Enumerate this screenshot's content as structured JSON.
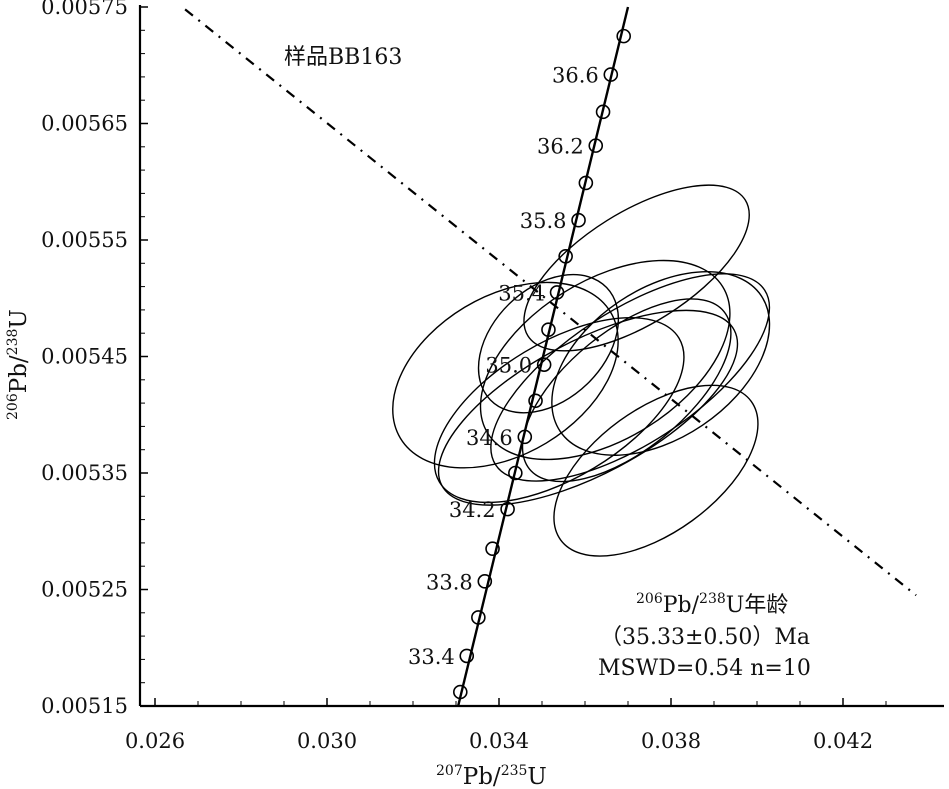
{
  "chart_data": {
    "type": "scatter",
    "subtype": "concordia",
    "sample_label": "样品BB163",
    "xlabel": {
      "sup1": "207",
      "main1": "Pb/",
      "sup2": "235",
      "main2": "U"
    },
    "ylabel": {
      "sup1": "206",
      "main1": "Pb/",
      "sup2": "238",
      "main2": "U"
    },
    "xlim": [
      0.026,
      0.0438
    ],
    "ylim": [
      0.00515,
      0.00575
    ],
    "x_ticks": [
      "0.026",
      "0.030",
      "0.034",
      "0.038",
      "0.042"
    ],
    "x_tick_values": [
      0.026,
      0.03,
      0.034,
      0.038,
      0.042
    ],
    "y_ticks": [
      "0.00515",
      "0.00525",
      "0.00535",
      "0.00545",
      "0.00555",
      "0.00565",
      "0.00575"
    ],
    "y_tick_values": [
      0.00515,
      0.00525,
      0.00535,
      0.00545,
      0.00555,
      0.00565,
      0.00575
    ],
    "concordia_line": {
      "start": [
        0.03305,
        0.00515
      ],
      "end": [
        0.037,
        0.00575
      ]
    },
    "concordia_ages": [
      {
        "age": 33.2,
        "x": 0.0331,
        "y": 0.005162,
        "label": ""
      },
      {
        "age": 33.4,
        "x": 0.03325,
        "y": 0.005193,
        "label": "33.4"
      },
      {
        "age": 33.6,
        "x": 0.03352,
        "y": 0.005226,
        "label": ""
      },
      {
        "age": 33.8,
        "x": 0.03367,
        "y": 0.005257,
        "label": "33.8"
      },
      {
        "age": 34.0,
        "x": 0.03385,
        "y": 0.005285,
        "label": ""
      },
      {
        "age": 34.2,
        "x": 0.0342,
        "y": 0.005319,
        "label": "34.2"
      },
      {
        "age": 34.4,
        "x": 0.03438,
        "y": 0.00535,
        "label": ""
      },
      {
        "age": 34.6,
        "x": 0.0346,
        "y": 0.005381,
        "label": "34.6"
      },
      {
        "age": 34.8,
        "x": 0.03485,
        "y": 0.005412,
        "label": ""
      },
      {
        "age": 35.0,
        "x": 0.03505,
        "y": 0.005443,
        "label": "35.0"
      },
      {
        "age": 35.2,
        "x": 0.03515,
        "y": 0.005473,
        "label": ""
      },
      {
        "age": 35.4,
        "x": 0.03535,
        "y": 0.005505,
        "label": "35.4"
      },
      {
        "age": 35.6,
        "x": 0.03555,
        "y": 0.005536,
        "label": ""
      },
      {
        "age": 35.8,
        "x": 0.03585,
        "y": 0.005567,
        "label": "35.8"
      },
      {
        "age": 36.0,
        "x": 0.03602,
        "y": 0.005599,
        "label": ""
      },
      {
        "age": 36.2,
        "x": 0.03625,
        "y": 0.005631,
        "label": "36.2"
      },
      {
        "age": 36.4,
        "x": 0.03642,
        "y": 0.00566,
        "label": ""
      },
      {
        "age": 36.6,
        "x": 0.0366,
        "y": 0.005692,
        "label": "36.6"
      },
      {
        "age": 36.8,
        "x": 0.0369,
        "y": 0.005725,
        "label": ""
      }
    ],
    "error_ellipses": [
      {
        "cx": 0.0372,
        "cy": 0.005526,
        "rx": 0.00298,
        "ry": 4.8e-05,
        "angle_deg": -32
      },
      {
        "cx": 0.03515,
        "cy": 0.005461,
        "rx": 0.00188,
        "ry": 4.8e-05,
        "angle_deg": -44
      },
      {
        "cx": 0.03415,
        "cy": 0.005434,
        "rx": 0.00285,
        "ry": 6.8e-05,
        "angle_deg": -31
      },
      {
        "cx": 0.0354,
        "cy": 0.005404,
        "rx": 0.00325,
        "ry": 5.8e-05,
        "angle_deg": -31
      },
      {
        "cx": 0.03607,
        "cy": 0.005406,
        "rx": 0.00385,
        "ry": 5.7e-05,
        "angle_deg": -28
      },
      {
        "cx": 0.03647,
        "cy": 0.005447,
        "rx": 0.00322,
        "ry": 6.8e-05,
        "angle_deg": -32
      },
      {
        "cx": 0.03697,
        "cy": 0.005421,
        "rx": 0.00291,
        "ry": 5.1e-05,
        "angle_deg": -39
      },
      {
        "cx": 0.03705,
        "cy": 0.005432,
        "rx": 0.00373,
        "ry": 5.7e-05,
        "angle_deg": -33
      },
      {
        "cx": 0.03776,
        "cy": 0.005444,
        "rx": 0.00282,
        "ry": 6.4e-05,
        "angle_deg": -34
      },
      {
        "cx": 0.03765,
        "cy": 0.005352,
        "rx": 0.00274,
        "ry": 5.3e-05,
        "angle_deg": -36
      }
    ],
    "regression_line": {
      "start": [
        0.0267,
        0.005748
      ],
      "end": [
        0.0437,
        0.005245
      ]
    },
    "annotation": {
      "line1": {
        "sup1": "206",
        "main1": "Pb/",
        "sup2": "238",
        "main2": "U年龄"
      },
      "line2": "（35.33±0.50）Ma",
      "line3": "MSWD=0.54  n=10"
    }
  }
}
